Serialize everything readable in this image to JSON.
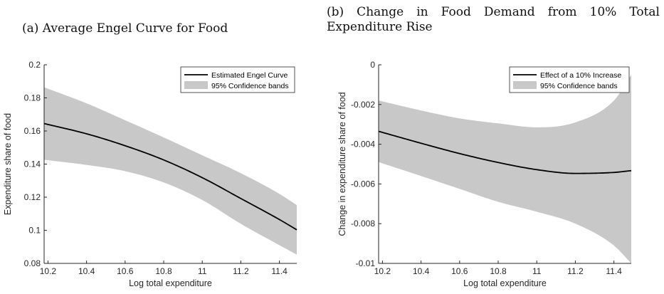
{
  "captions": {
    "a": "(a) Average Engel Curve for Food",
    "b": "(b) Change in Food Demand from 10% Total Expenditure Rise"
  },
  "colors": {
    "line": "#000000",
    "band": "#c8c8c8",
    "axis": "#262626"
  },
  "chart_data": [
    {
      "type": "line",
      "title": "(a) Average Engel Curve for Food",
      "xlabel": "Log total expenditure",
      "ylabel": "Expenditure share of food",
      "xlim": [
        10.18,
        11.49
      ],
      "ylim": [
        0.08,
        0.2
      ],
      "xticks": [
        10.2,
        10.4,
        10.6,
        10.8,
        11,
        11.2,
        11.4
      ],
      "xtick_labels": [
        "10.2",
        "10.4",
        "10.6",
        "10.8",
        "11",
        "11.2",
        "11.4"
      ],
      "yticks": [
        0.08,
        0.1,
        0.12,
        0.14,
        0.16,
        0.18,
        0.2
      ],
      "ytick_labels": [
        "0.08",
        "0.1",
        "0.12",
        "0.14",
        "0.16",
        "0.18",
        "0.2"
      ],
      "grid": false,
      "legend_position": "top-right",
      "x": [
        10.18,
        10.4,
        10.6,
        10.8,
        11.0,
        11.2,
        11.4,
        11.49
      ],
      "series": [
        {
          "name": "Estimated Engel Curve",
          "role": "line",
          "values": [
            0.1645,
            0.1583,
            0.1511,
            0.1425,
            0.1318,
            0.1192,
            0.1065,
            0.1003
          ]
        },
        {
          "name": "95% Confidence bands",
          "role": "band",
          "upper": [
            0.1864,
            0.1767,
            0.1665,
            0.1561,
            0.1453,
            0.1345,
            0.122,
            0.1152
          ],
          "lower": [
            0.1426,
            0.1395,
            0.1357,
            0.1289,
            0.1183,
            0.1039,
            0.091,
            0.0853
          ]
        }
      ]
    },
    {
      "type": "line",
      "title": "(b) Change in Food Demand from 10% Total Expenditure Rise",
      "xlabel": "Log total expenditure",
      "ylabel": "Change in expenditure share of food",
      "xlim": [
        10.18,
        11.49
      ],
      "ylim": [
        -0.01,
        0
      ],
      "xticks": [
        10.2,
        10.4,
        10.6,
        10.8,
        11,
        11.2,
        11.4
      ],
      "xtick_labels": [
        "10.2",
        "10.4",
        "10.6",
        "10.8",
        "11",
        "11.2",
        "11.4"
      ],
      "yticks": [
        -0.01,
        -0.008,
        -0.006,
        -0.004,
        -0.002,
        0
      ],
      "ytick_labels": [
        "-0.01",
        "-0.008",
        "-0.006",
        "-0.004",
        "-0.002",
        "0"
      ],
      "grid": false,
      "legend_position": "top-right",
      "x": [
        10.18,
        10.4,
        10.6,
        10.8,
        11.0,
        11.2,
        11.4,
        11.49
      ],
      "series": [
        {
          "name": "Effect of a 10% Increase",
          "role": "line",
          "values": [
            -0.00335,
            -0.00395,
            -0.00447,
            -0.00492,
            -0.00528,
            -0.00547,
            -0.00542,
            -0.00533
          ]
        },
        {
          "name": "95% Confidence bands",
          "role": "band",
          "upper": [
            -0.0018,
            -0.0023,
            -0.0027,
            -0.00295,
            -0.00315,
            -0.0029,
            -0.0018,
            -0.0005
          ],
          "lower": [
            -0.0049,
            -0.0056,
            -0.00625,
            -0.0069,
            -0.0074,
            -0.008,
            -0.0091,
            -0.01
          ]
        }
      ]
    }
  ]
}
